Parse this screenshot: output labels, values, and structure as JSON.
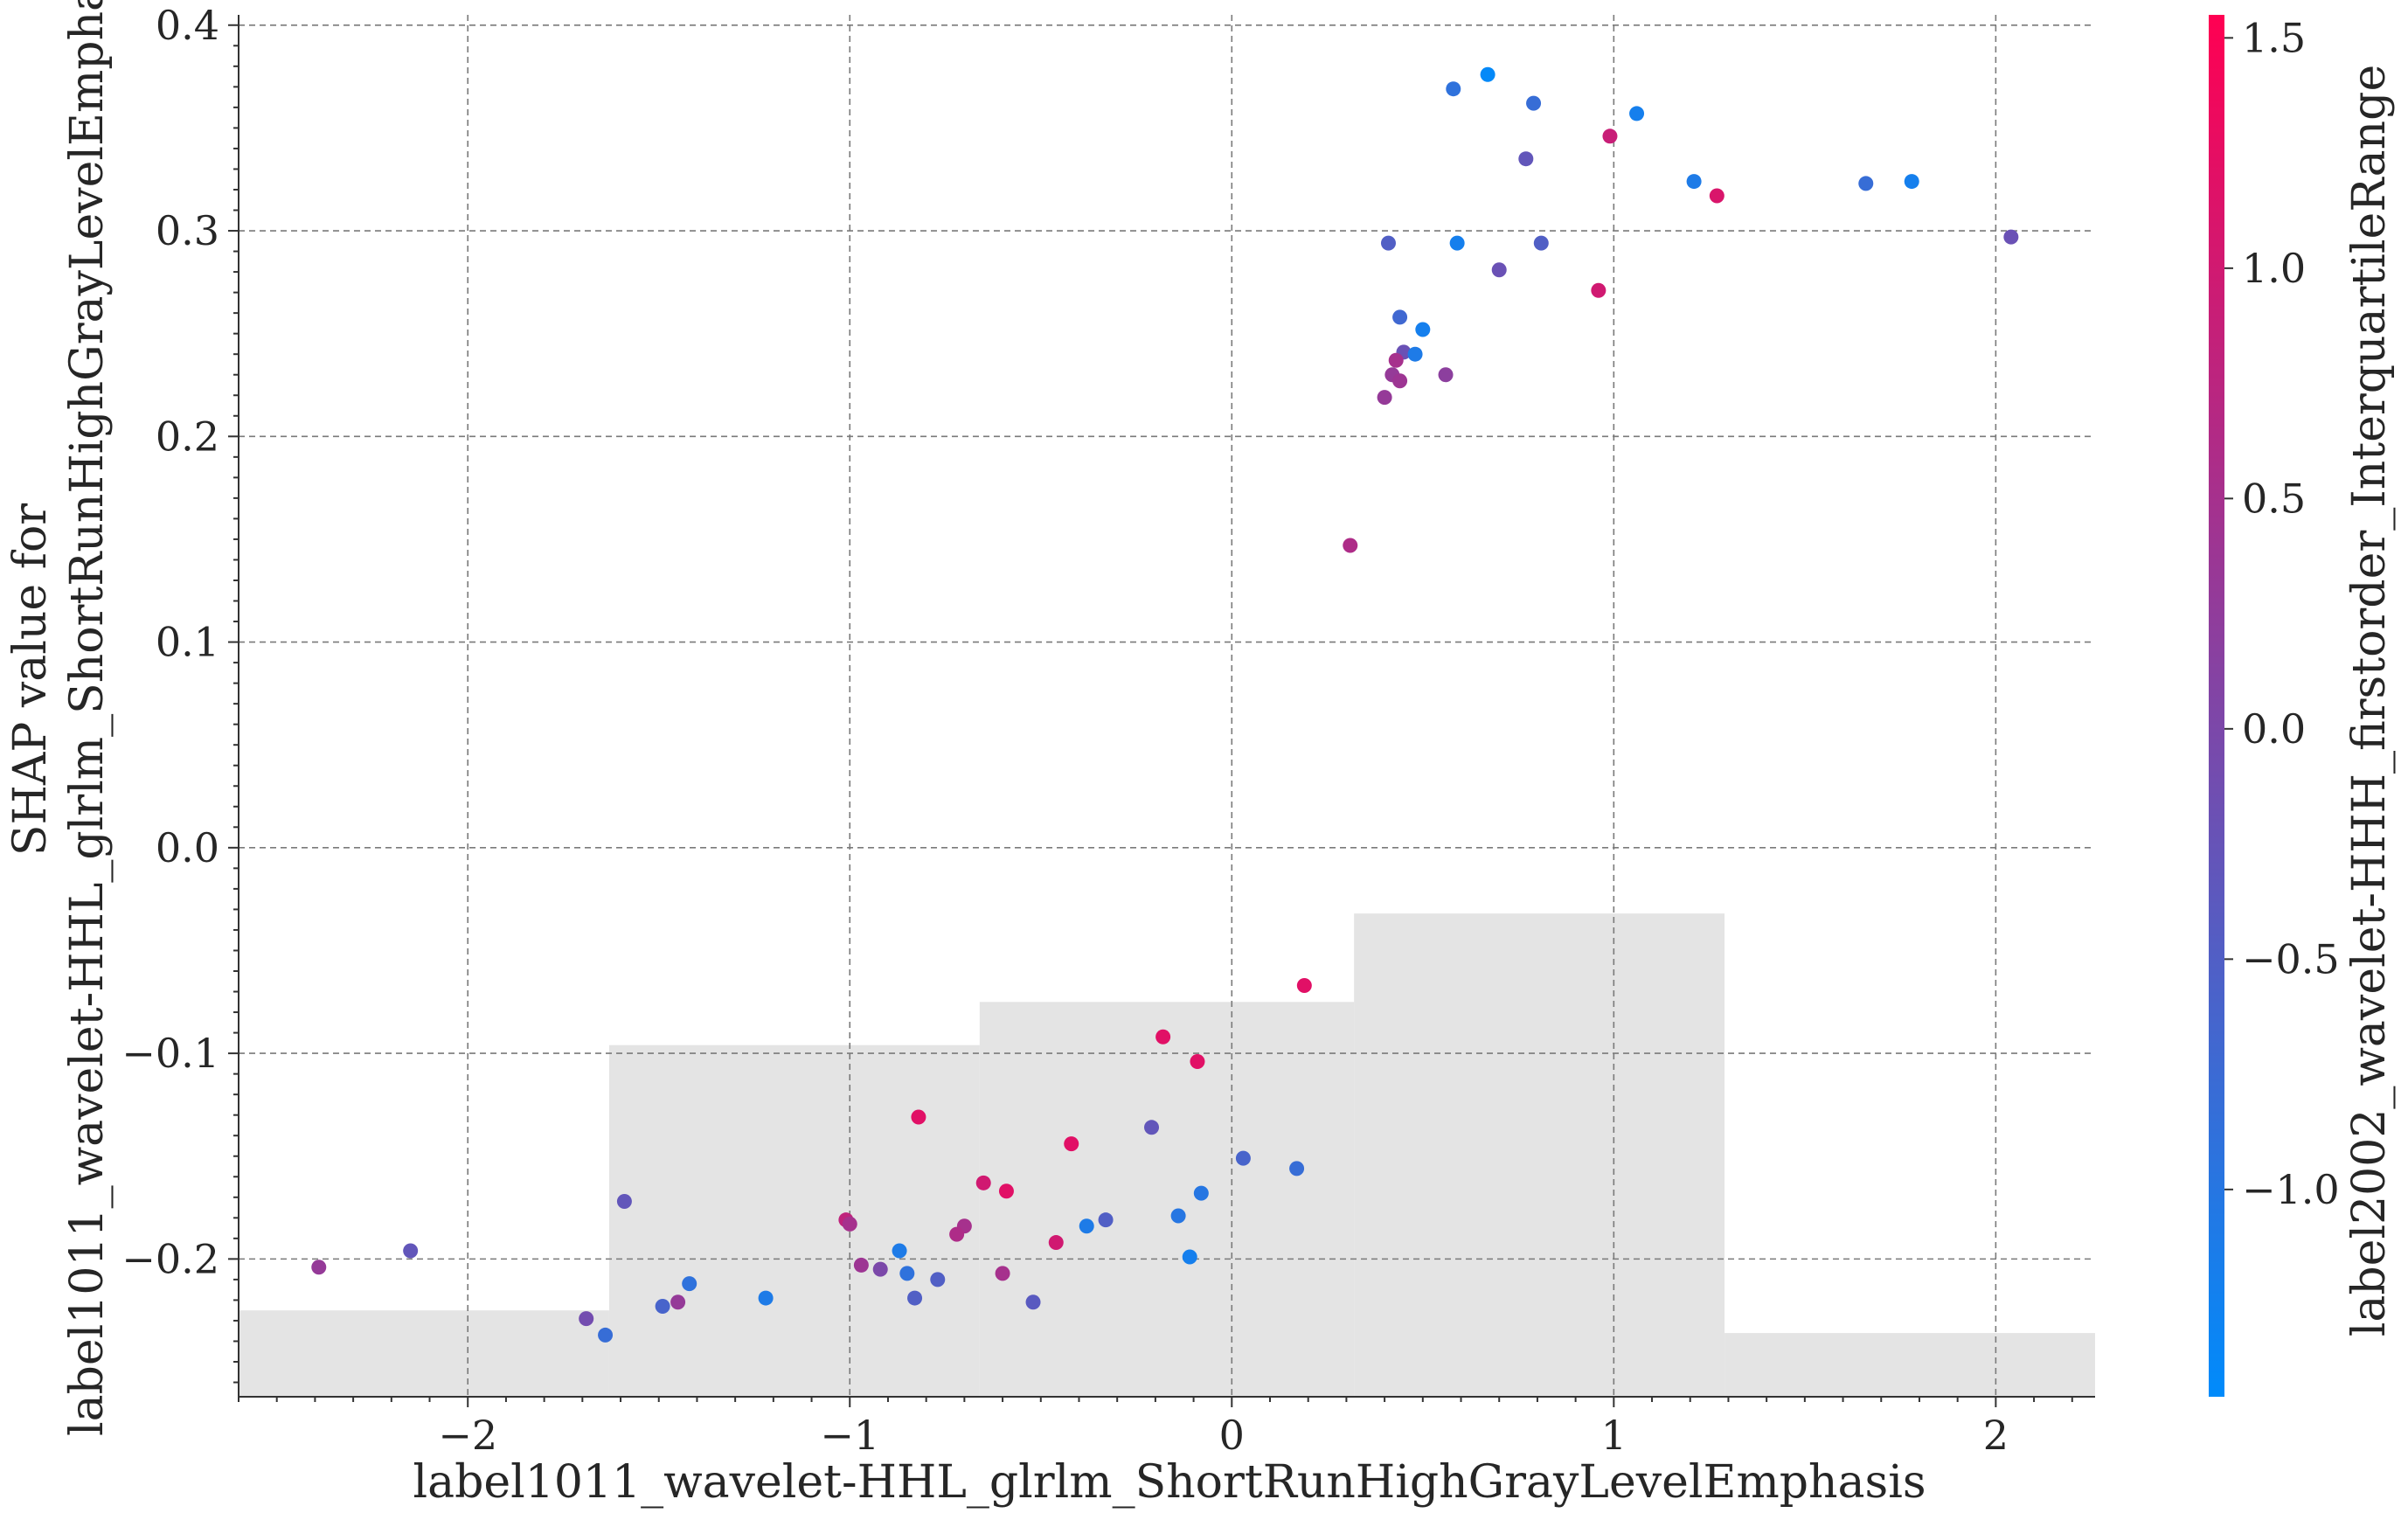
{
  "chart_data": {
    "type": "scatter",
    "xlabel": "label1011_wavelet-HHL_glrlm_ShortRunHighGrayLevelEmphasis",
    "ylabel": "SHAP value for\nlabel1011_wavelet-HHL_glrlm_ShortRunHighGrayLevelEmphasis",
    "xlim": [
      -2.6,
      2.26
    ],
    "ylim": [
      -0.267,
      0.405
    ],
    "xticks": [
      -2,
      -1,
      0,
      1,
      2
    ],
    "xtick_labels": [
      "−2",
      "−1",
      "0",
      "1",
      "2"
    ],
    "yticks": [
      -0.2,
      -0.1,
      0.0,
      0.1,
      0.2,
      0.3,
      0.4
    ],
    "ytick_labels": [
      "−0.2",
      "−0.1",
      "0.0",
      "0.1",
      "0.2",
      "0.3",
      "0.4"
    ],
    "grid": true,
    "histogram_background": {
      "color": "#e4e4e4",
      "bins": [
        {
          "x0": -2.6,
          "x1": -1.63,
          "top": -0.225
        },
        {
          "x0": -1.63,
          "x1": -0.66,
          "top": -0.096
        },
        {
          "x0": -0.66,
          "x1": 0.32,
          "top": -0.075
        },
        {
          "x0": 0.32,
          "x1": 1.29,
          "top": -0.032
        },
        {
          "x0": 1.29,
          "x1": 2.26,
          "top": -0.236
        }
      ]
    },
    "colorbar": {
      "label": "label2002_wavelet-HHH_firstorder_InterquartileRange",
      "min": -1.45,
      "max": 1.55,
      "ticks": [
        -1.0,
        -0.5,
        0.0,
        0.5,
        1.0,
        1.5
      ],
      "tick_labels": [
        "−1.0",
        "−0.5",
        "0.0",
        "0.5",
        "1.0",
        "1.5"
      ],
      "colormap": [
        "#008bfb",
        "#ff0052"
      ]
    },
    "points": [
      {
        "x": 0.67,
        "y": 0.376,
        "c": -1.4
      },
      {
        "x": 0.58,
        "y": 0.369,
        "c": -0.9
      },
      {
        "x": 0.79,
        "y": 0.362,
        "c": -0.8
      },
      {
        "x": 1.06,
        "y": 0.357,
        "c": -1.2
      },
      {
        "x": 0.99,
        "y": 0.346,
        "c": 0.9
      },
      {
        "x": 0.77,
        "y": 0.335,
        "c": -0.3
      },
      {
        "x": 1.21,
        "y": 0.324,
        "c": -1.1
      },
      {
        "x": 1.66,
        "y": 0.323,
        "c": -0.8
      },
      {
        "x": 1.78,
        "y": 0.324,
        "c": -1.2
      },
      {
        "x": 1.27,
        "y": 0.317,
        "c": 1.1
      },
      {
        "x": 2.04,
        "y": 0.297,
        "c": -0.2
      },
      {
        "x": 0.41,
        "y": 0.294,
        "c": -0.5
      },
      {
        "x": 0.59,
        "y": 0.294,
        "c": -1.2
      },
      {
        "x": 0.81,
        "y": 0.294,
        "c": -0.5
      },
      {
        "x": 0.7,
        "y": 0.281,
        "c": -0.2
      },
      {
        "x": 0.96,
        "y": 0.271,
        "c": 1.0
      },
      {
        "x": 0.44,
        "y": 0.258,
        "c": -0.7
      },
      {
        "x": 0.5,
        "y": 0.252,
        "c": -1.2
      },
      {
        "x": 0.45,
        "y": 0.241,
        "c": -0.2
      },
      {
        "x": 0.48,
        "y": 0.24,
        "c": -1.1
      },
      {
        "x": 0.43,
        "y": 0.237,
        "c": 0.5
      },
      {
        "x": 0.42,
        "y": 0.23,
        "c": 0.3
      },
      {
        "x": 0.56,
        "y": 0.23,
        "c": 0.2
      },
      {
        "x": 0.44,
        "y": 0.227,
        "c": 0.4
      },
      {
        "x": 0.4,
        "y": 0.219,
        "c": 0.3
      },
      {
        "x": 0.31,
        "y": 0.147,
        "c": 0.6
      },
      {
        "x": 0.19,
        "y": -0.067,
        "c": 1.2
      },
      {
        "x": -0.18,
        "y": -0.092,
        "c": 1.2
      },
      {
        "x": -0.09,
        "y": -0.104,
        "c": 1.2
      },
      {
        "x": -0.82,
        "y": -0.131,
        "c": 1.2
      },
      {
        "x": -0.21,
        "y": -0.136,
        "c": -0.3
      },
      {
        "x": -0.42,
        "y": -0.144,
        "c": 1.2
      },
      {
        "x": 0.03,
        "y": -0.151,
        "c": -0.6
      },
      {
        "x": 0.17,
        "y": -0.156,
        "c": -0.8
      },
      {
        "x": -0.65,
        "y": -0.163,
        "c": 1.0
      },
      {
        "x": -0.59,
        "y": -0.167,
        "c": 1.2
      },
      {
        "x": -0.08,
        "y": -0.168,
        "c": -1.0
      },
      {
        "x": -1.59,
        "y": -0.172,
        "c": -0.3
      },
      {
        "x": -0.14,
        "y": -0.179,
        "c": -1.0
      },
      {
        "x": -1.01,
        "y": -0.181,
        "c": 0.8
      },
      {
        "x": -0.33,
        "y": -0.181,
        "c": -0.5
      },
      {
        "x": -1.0,
        "y": -0.183,
        "c": 0.5
      },
      {
        "x": -0.7,
        "y": -0.184,
        "c": 0.5
      },
      {
        "x": -0.38,
        "y": -0.184,
        "c": -1.1
      },
      {
        "x": -0.72,
        "y": -0.188,
        "c": 0.6
      },
      {
        "x": -0.46,
        "y": -0.192,
        "c": 1.0
      },
      {
        "x": -2.15,
        "y": -0.196,
        "c": -0.3
      },
      {
        "x": -0.87,
        "y": -0.196,
        "c": -1.1
      },
      {
        "x": -0.11,
        "y": -0.199,
        "c": -1.2
      },
      {
        "x": -2.39,
        "y": -0.204,
        "c": 0.3
      },
      {
        "x": -0.97,
        "y": -0.203,
        "c": 0.4
      },
      {
        "x": -0.92,
        "y": -0.205,
        "c": 0.0
      },
      {
        "x": -0.85,
        "y": -0.207,
        "c": -0.9
      },
      {
        "x": -0.6,
        "y": -0.207,
        "c": 0.5
      },
      {
        "x": -0.77,
        "y": -0.21,
        "c": -0.5
      },
      {
        "x": -1.42,
        "y": -0.212,
        "c": -0.9
      },
      {
        "x": -1.22,
        "y": -0.219,
        "c": -1.1
      },
      {
        "x": -0.83,
        "y": -0.219,
        "c": -0.5
      },
      {
        "x": -1.45,
        "y": -0.221,
        "c": 0.3
      },
      {
        "x": -0.52,
        "y": -0.221,
        "c": -0.4
      },
      {
        "x": -1.49,
        "y": -0.223,
        "c": -0.6
      },
      {
        "x": -1.69,
        "y": -0.229,
        "c": -0.1
      },
      {
        "x": -1.64,
        "y": -0.237,
        "c": -0.8
      }
    ]
  }
}
